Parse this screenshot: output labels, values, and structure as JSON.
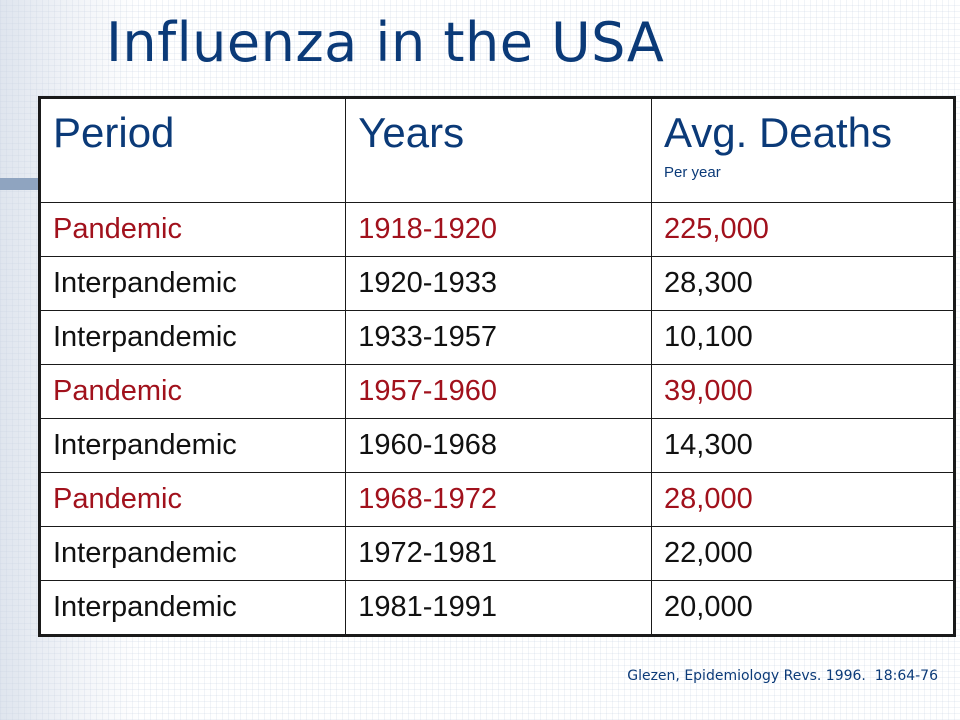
{
  "slide": {
    "title": "Influenza in the USA",
    "citation": "Glezen, Epidemiology Revs. 1996.  18:64-76"
  },
  "colors": {
    "title": "#0b3a78",
    "pandemic_text": "#a1111c",
    "interpandemic_text": "#111111",
    "border": "#1a1a1a"
  },
  "table": {
    "headers": {
      "period": "Period",
      "years": "Years",
      "deaths": "Avg. Deaths",
      "deaths_sub": "Per year"
    },
    "rows": [
      {
        "period": "Pandemic",
        "years": "1918-1920",
        "deaths": "225,000",
        "type": "pandemic"
      },
      {
        "period": "Interpandemic",
        "years": "1920-1933",
        "deaths": "28,300",
        "type": "interpandemic"
      },
      {
        "period": "Interpandemic",
        "years": "1933-1957",
        "deaths": "10,100",
        "type": "interpandemic"
      },
      {
        "period": "Pandemic",
        "years": "1957-1960",
        "deaths": "39,000",
        "type": "pandemic"
      },
      {
        "period": "Interpandemic",
        "years": "1960-1968",
        "deaths": "14,300",
        "type": "interpandemic"
      },
      {
        "period": "Pandemic",
        "years": "1968-1972",
        "deaths": "28,000",
        "type": "pandemic"
      },
      {
        "period": "Interpandemic",
        "years": "1972-1981",
        "deaths": "22,000",
        "type": "interpandemic"
      },
      {
        "period": "Interpandemic",
        "years": "1981-1991",
        "deaths": "20,000",
        "type": "interpandemic"
      }
    ]
  }
}
